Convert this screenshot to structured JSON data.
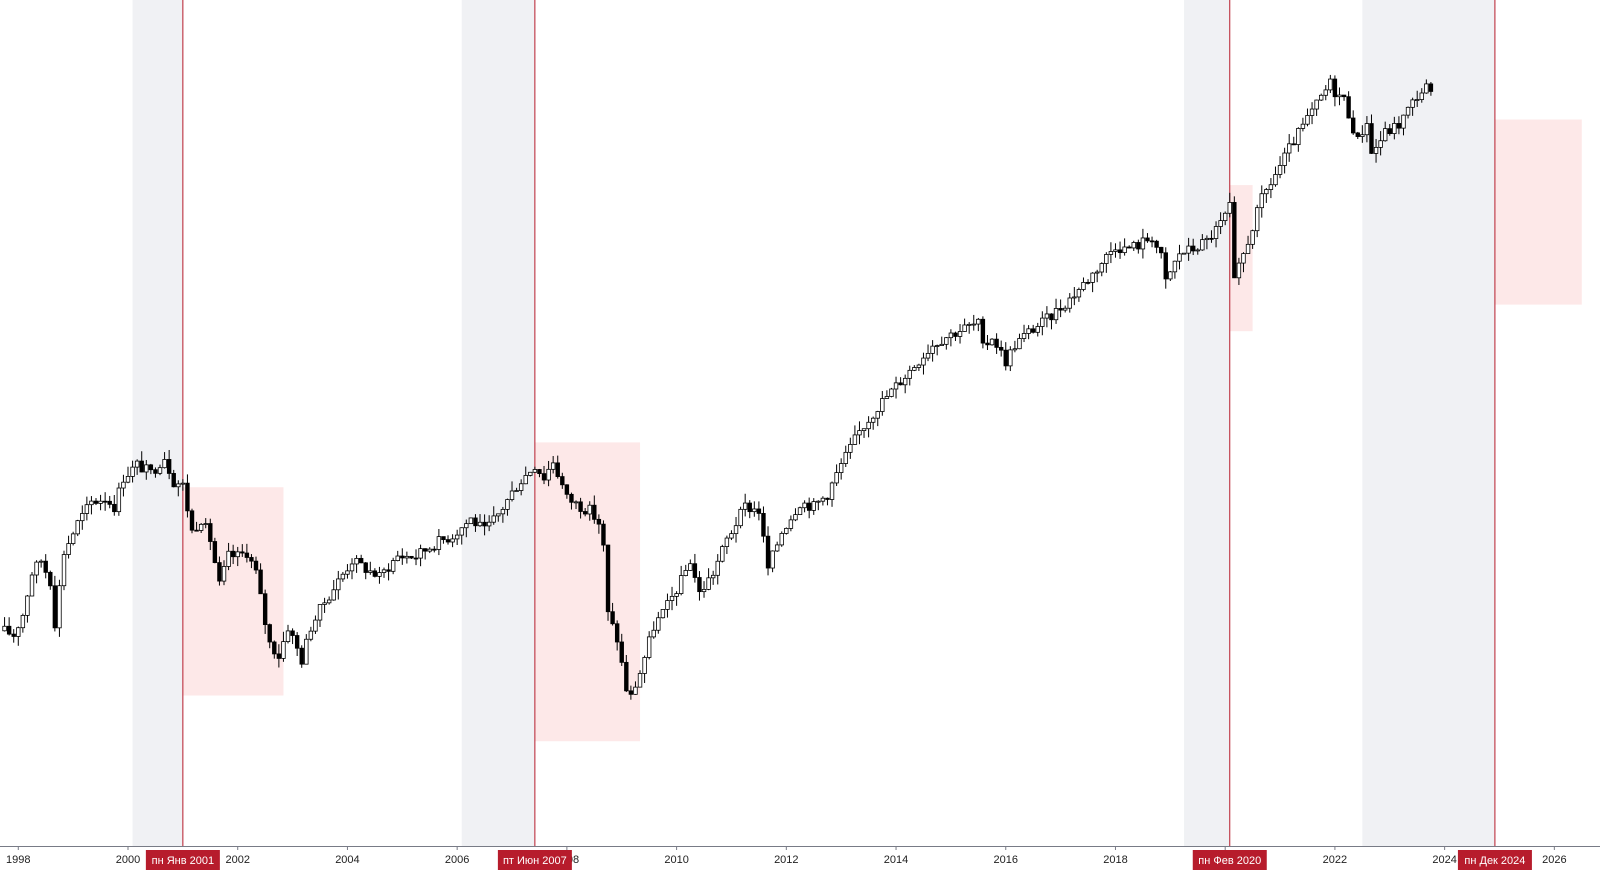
{
  "chart_data": {
    "type": "candlestick",
    "x_axis": {
      "range": [
        "1997-09-01",
        "2026-10-31"
      ],
      "ticks": [
        "1998",
        "2000",
        "2002",
        "2004",
        "2006",
        "2008",
        "2010",
        "2012",
        "2014",
        "2016",
        "2018",
        "2020",
        "2022",
        "2024",
        "2026"
      ]
    },
    "y_axis": {
      "visible": false,
      "range": [
        0,
        100
      ]
    },
    "shaded_periods": [
      {
        "start": "2000-02-01",
        "end": "2001-01-01"
      },
      {
        "start": "2006-02-01",
        "end": "2007-06-01"
      },
      {
        "start": "2019-04-01",
        "end": "2020-02-01"
      },
      {
        "start": "2022-07-01",
        "end": "2024-12-01"
      }
    ],
    "drawdown_zones": [
      {
        "start": "2001-01-01",
        "end": "2002-11-01",
        "top": 41.3,
        "bottom": 16.2
      },
      {
        "start": "2007-06-01",
        "end": "2009-05-01",
        "top": 46.7,
        "bottom": 10.7
      },
      {
        "start": "2020-02-01",
        "end": "2020-07-01",
        "top": 77.7,
        "bottom": 60.1
      },
      {
        "start": "2024-12-01",
        "end": "2026-07-01",
        "top": 85.6,
        "bottom": 63.3
      }
    ],
    "event_markers": [
      {
        "date": "2001-01-01",
        "label": "пн Янв 2001"
      },
      {
        "date": "2007-06-01",
        "label": "пт Июн 2007"
      },
      {
        "date": "2020-02-01",
        "label": "пн Фев 2020"
      },
      {
        "date": "2024-12-01",
        "label": "пн Дек 2024"
      }
    ],
    "price_path": [
      [
        "1997-10-01",
        24.0
      ],
      [
        "1997-12-01",
        23.5
      ],
      [
        "1998-02-01",
        26.0
      ],
      [
        "1998-04-01",
        31.0
      ],
      [
        "1998-06-01",
        32.5
      ],
      [
        "1998-08-01",
        30.0
      ],
      [
        "1998-09-01",
        25.0
      ],
      [
        "1998-11-01",
        33.5
      ],
      [
        "1999-02-01",
        37.0
      ],
      [
        "1999-05-01",
        39.5
      ],
      [
        "1999-08-01",
        40.0
      ],
      [
        "1999-10-01",
        39.0
      ],
      [
        "1999-12-01",
        42.5
      ],
      [
        "2000-03-01",
        44.0
      ],
      [
        "2000-06-01",
        43.0
      ],
      [
        "2000-09-01",
        45.0
      ],
      [
        "2000-11-01",
        42.0
      ],
      [
        "2000-12-01",
        41.8
      ],
      [
        "2001-01-01",
        41.5
      ],
      [
        "2001-03-01",
        36.0
      ],
      [
        "2001-05-01",
        37.5
      ],
      [
        "2001-07-01",
        35.0
      ],
      [
        "2001-09-01",
        29.5
      ],
      [
        "2001-11-01",
        33.0
      ],
      [
        "2002-01-01",
        33.0
      ],
      [
        "2002-03-01",
        33.5
      ],
      [
        "2002-05-01",
        31.0
      ],
      [
        "2002-07-01",
        25.0
      ],
      [
        "2002-08-01",
        22.5
      ],
      [
        "2002-10-01",
        21.0
      ],
      [
        "2002-12-01",
        24.5
      ],
      [
        "2003-03-01",
        20.5
      ],
      [
        "2003-05-01",
        24.5
      ],
      [
        "2003-08-01",
        27.5
      ],
      [
        "2003-11-01",
        30.0
      ],
      [
        "2004-02-01",
        32.5
      ],
      [
        "2004-05-01",
        31.5
      ],
      [
        "2004-08-01",
        30.5
      ],
      [
        "2004-12-01",
        33.0
      ],
      [
        "2005-04-01",
        33.0
      ],
      [
        "2005-08-01",
        34.5
      ],
      [
        "2005-12-01",
        35.5
      ],
      [
        "2006-04-01",
        37.5
      ],
      [
        "2006-07-01",
        36.0
      ],
      [
        "2006-10-01",
        38.0
      ],
      [
        "2007-02-01",
        41.5
      ],
      [
        "2007-06-01",
        44.0
      ],
      [
        "2007-08-01",
        42.5
      ],
      [
        "2007-10-01",
        44.5
      ],
      [
        "2008-01-01",
        40.0
      ],
      [
        "2008-04-01",
        39.0
      ],
      [
        "2008-06-01",
        38.5
      ],
      [
        "2008-08-01",
        37.0
      ],
      [
        "2008-09-01",
        34.0
      ],
      [
        "2008-10-01",
        26.0
      ],
      [
        "2008-12-01",
        23.0
      ],
      [
        "2009-02-01",
        17.0
      ],
      [
        "2009-03-01",
        16.0
      ],
      [
        "2009-05-01",
        19.0
      ],
      [
        "2009-08-01",
        24.5
      ],
      [
        "2009-11-01",
        27.0
      ],
      [
        "2010-02-01",
        30.0
      ],
      [
        "2010-04-01",
        32.5
      ],
      [
        "2010-06-01",
        28.5
      ],
      [
        "2010-09-01",
        31.0
      ],
      [
        "2010-12-01",
        35.0
      ],
      [
        "2011-04-01",
        39.0
      ],
      [
        "2011-07-01",
        38.5
      ],
      [
        "2011-09-01",
        31.5
      ],
      [
        "2011-12-01",
        36.0
      ],
      [
        "2012-04-01",
        39.5
      ],
      [
        "2012-07-01",
        39.0
      ],
      [
        "2012-10-01",
        40.5
      ],
      [
        "2013-01-01",
        44.0
      ],
      [
        "2013-05-01",
        48.0
      ],
      [
        "2013-09-01",
        51.0
      ],
      [
        "2014-01-01",
        53.5
      ],
      [
        "2014-05-01",
        56.0
      ],
      [
        "2014-09-01",
        58.5
      ],
      [
        "2014-12-01",
        59.5
      ],
      [
        "2015-04-01",
        60.5
      ],
      [
        "2015-07-01",
        61.0
      ],
      [
        "2015-08-01",
        58.0
      ],
      [
        "2015-10-01",
        59.5
      ],
      [
        "2016-01-01",
        56.5
      ],
      [
        "2016-03-01",
        58.5
      ],
      [
        "2016-06-01",
        60.0
      ],
      [
        "2016-10-01",
        61.5
      ],
      [
        "2017-03-01",
        64.0
      ],
      [
        "2017-08-01",
        67.0
      ],
      [
        "2018-01-01",
        70.5
      ],
      [
        "2018-03-01",
        70.0
      ],
      [
        "2018-06-01",
        70.5
      ],
      [
        "2018-09-01",
        71.5
      ],
      [
        "2018-11-01",
        69.0
      ],
      [
        "2018-12-01",
        66.0
      ],
      [
        "2019-03-01",
        69.5
      ],
      [
        "2019-06-01",
        70.0
      ],
      [
        "2019-09-01",
        71.0
      ],
      [
        "2019-12-01",
        73.0
      ],
      [
        "2020-02-01",
        75.0
      ],
      [
        "2020-03-01",
        66.0
      ],
      [
        "2020-06-01",
        71.0
      ],
      [
        "2020-09-01",
        76.0
      ],
      [
        "2020-12-01",
        79.0
      ],
      [
        "2021-04-01",
        83.0
      ],
      [
        "2021-08-01",
        86.5
      ],
      [
        "2021-12-01",
        90.0
      ],
      [
        "2022-01-01",
        89.0
      ],
      [
        "2022-03-01",
        88.0
      ],
      [
        "2022-06-01",
        83.0
      ],
      [
        "2022-08-01",
        85.5
      ],
      [
        "2022-09-01",
        81.5
      ],
      [
        "2022-12-01",
        84.0
      ],
      [
        "2023-03-01",
        85.0
      ],
      [
        "2023-07-01",
        88.5
      ],
      [
        "2023-09-01",
        89.5
      ],
      [
        "2023-10-01",
        88.5
      ]
    ]
  },
  "axis_labels": [
    "1998",
    "2000",
    "2002",
    "2004",
    "2006",
    "2008",
    "2010",
    "2012",
    "2014",
    "2016",
    "2018",
    "2020",
    "2022",
    "2024",
    "2026"
  ],
  "colors": {
    "background": "#ffffff",
    "shade": "#f0f1f4",
    "zone": "#fde8e8",
    "marker": "#b71c2c",
    "candle_up": "#ffffff",
    "candle_down": "#000000",
    "wick": "#000000",
    "axis": "#787b86"
  }
}
